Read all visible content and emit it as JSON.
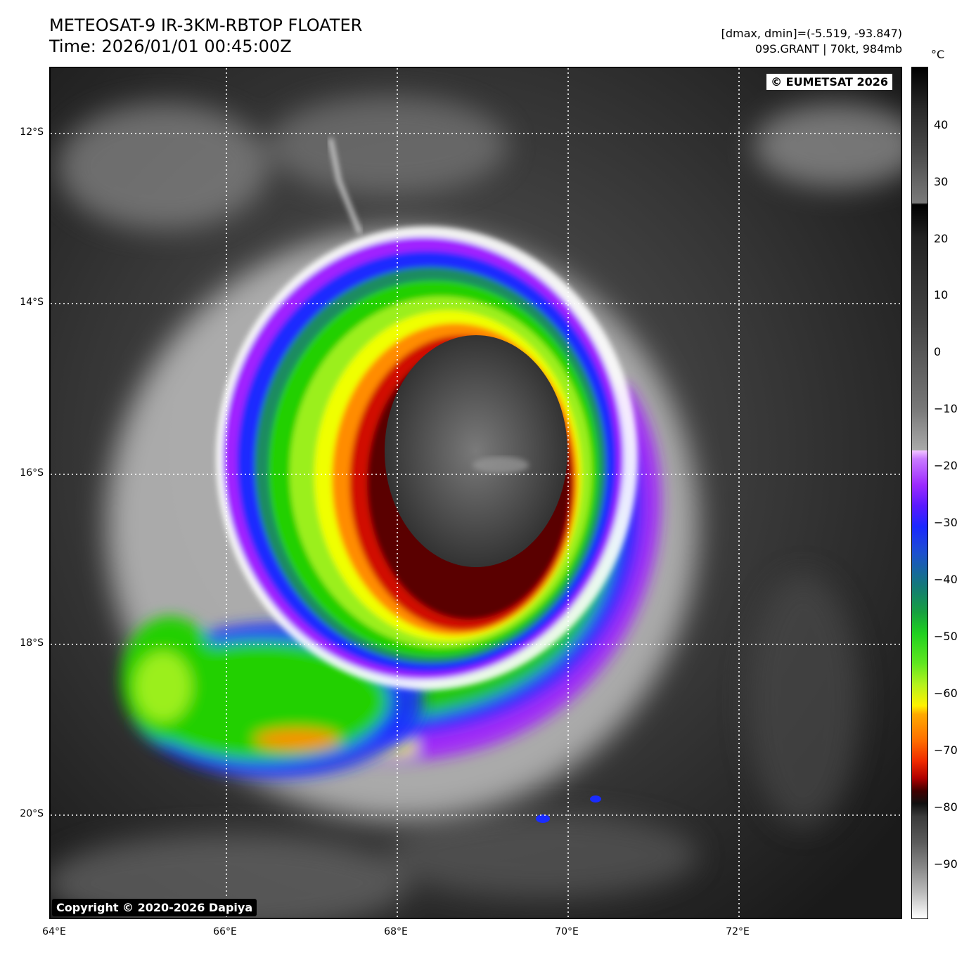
{
  "header": {
    "title_line1": "METEOSAT-9 IR-3KM-RBTOP FLOATER",
    "title_line2": "Time: 2026/01/01 00:45:00Z",
    "info_line1": "[dmax, dmin]=(-5.519, -93.847)",
    "info_line2": "09S.GRANT | 70kt, 984mb"
  },
  "map": {
    "credit_top": "© EUMETSAT 2026",
    "credit_bottom": "Copyright © 2020-2026 Dapiya",
    "lat_labels": [
      "12°S",
      "14°S",
      "16°S",
      "18°S",
      "20°S"
    ],
    "lon_labels": [
      "64°E",
      "66°E",
      "68°E",
      "70°E",
      "72°E"
    ]
  },
  "colorbar": {
    "unit": "°C",
    "ticks": [
      "40",
      "30",
      "20",
      "10",
      "0",
      "−10",
      "−20",
      "−30",
      "−40",
      "−50",
      "−60",
      "−70",
      "−80",
      "−90"
    ]
  },
  "colors": {
    "gridline": "#ffffff",
    "cold_core": "#303030",
    "red_band": "#d01000",
    "orange_band": "#ff8c00",
    "yellow_band": "#f0ff00",
    "green_band": "#22d000",
    "blue_band": "#1a2cff",
    "purple_band": "#a020ff"
  }
}
